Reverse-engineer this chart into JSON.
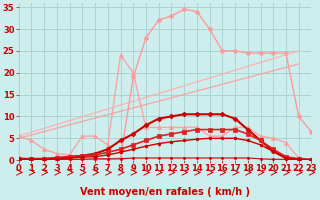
{
  "title": "",
  "xlabel": "Vent moyen/en rafales ( km/h )",
  "background_color": "#cdeeed",
  "grid_color": "#aad4d2",
  "xlim": [
    0,
    23
  ],
  "ylim": [
    0,
    36
  ],
  "yticks": [
    0,
    5,
    10,
    15,
    20,
    25,
    30,
    35
  ],
  "xticks": [
    0,
    1,
    2,
    3,
    4,
    5,
    6,
    7,
    8,
    9,
    10,
    11,
    12,
    13,
    14,
    15,
    16,
    17,
    18,
    19,
    20,
    21,
    22,
    23
  ],
  "series": [
    {
      "x": [
        0,
        1,
        2,
        3,
        4,
        5,
        6,
        7,
        8,
        9,
        10,
        11,
        12,
        13,
        14,
        15,
        16,
        17,
        18,
        19,
        20,
        21,
        22,
        23
      ],
      "y": [
        0.5,
        0.3,
        0.2,
        0.2,
        0.2,
        0.2,
        0.2,
        0.2,
        0.5,
        19,
        28,
        32,
        33,
        34.5,
        34,
        30,
        25,
        25,
        24.5,
        24.5,
        24.5,
        24.5,
        10,
        6.5
      ],
      "color": "#ff9999",
      "marker": "P",
      "markersize": 3,
      "linewidth": 1.0,
      "alpha": 1.0
    },
    {
      "x": [
        0,
        22
      ],
      "y": [
        5.5,
        25
      ],
      "color": "#ffaaaa",
      "marker": null,
      "linewidth": 1.0,
      "alpha": 0.8
    },
    {
      "x": [
        0,
        22
      ],
      "y": [
        5.0,
        22
      ],
      "color": "#ff9999",
      "marker": null,
      "linewidth": 1.0,
      "alpha": 0.8
    },
    {
      "x": [
        0,
        1,
        2,
        3,
        4,
        5,
        6,
        7,
        8,
        9,
        10,
        11,
        12,
        13,
        14,
        15,
        16,
        17,
        18,
        19,
        20,
        21,
        22,
        23
      ],
      "y": [
        5.5,
        4.5,
        2.5,
        1.5,
        1.2,
        5.5,
        5.5,
        3.5,
        24.0,
        20.0,
        7.5,
        7.5,
        7.5,
        7.5,
        7.5,
        5.5,
        5.5,
        7.5,
        7.5,
        5.5,
        5.0,
        4.0,
        0.5,
        0.2
      ],
      "color": "#ff9999",
      "marker": "^",
      "markersize": 3,
      "linewidth": 1.0,
      "alpha": 0.85
    },
    {
      "x": [
        0,
        1,
        2,
        3,
        4,
        5,
        6,
        7,
        8,
        9,
        10,
        11,
        12,
        13,
        14,
        15,
        16,
        17,
        18,
        19,
        20,
        21,
        22,
        23
      ],
      "y": [
        0.3,
        0.3,
        0.3,
        0.5,
        0.8,
        1.0,
        1.5,
        2.5,
        4.5,
        6.0,
        8.0,
        9.5,
        10.0,
        10.5,
        10.5,
        10.5,
        10.5,
        9.5,
        7.0,
        4.5,
        2.0,
        0.5,
        0.2,
        0.1
      ],
      "color": "#cc0000",
      "marker": "D",
      "markersize": 2.5,
      "linewidth": 1.5,
      "alpha": 1.0
    },
    {
      "x": [
        0,
        1,
        2,
        3,
        4,
        5,
        6,
        7,
        8,
        9,
        10,
        11,
        12,
        13,
        14,
        15,
        16,
        17,
        18,
        19,
        20,
        21,
        22,
        23
      ],
      "y": [
        0.3,
        0.3,
        0.3,
        0.5,
        0.8,
        1.0,
        1.2,
        1.8,
        2.5,
        3.5,
        4.5,
        5.5,
        6.0,
        6.5,
        7.0,
        7.0,
        7.0,
        7.0,
        6.0,
        4.5,
        2.5,
        0.8,
        0.3,
        0.1
      ],
      "color": "#dd2222",
      "marker": "s",
      "markersize": 2.5,
      "linewidth": 1.2,
      "alpha": 1.0
    },
    {
      "x": [
        0,
        1,
        2,
        3,
        4,
        5,
        6,
        7,
        8,
        9,
        10,
        11,
        12,
        13,
        14,
        15,
        16,
        17,
        18,
        19,
        20,
        21,
        22,
        23
      ],
      "y": [
        0.2,
        0.2,
        0.2,
        0.3,
        0.5,
        0.7,
        0.8,
        1.2,
        1.8,
        2.5,
        3.2,
        3.8,
        4.2,
        4.5,
        4.8,
        5.0,
        5.0,
        5.0,
        4.5,
        3.5,
        2.0,
        0.5,
        0.2,
        0.1
      ],
      "color": "#cc0000",
      "marker": "o",
      "markersize": 2,
      "linewidth": 1.0,
      "alpha": 1.0
    },
    {
      "x": [
        0,
        1,
        2,
        3,
        4,
        5,
        6,
        7,
        8,
        9,
        10,
        11,
        12,
        13,
        14,
        15,
        16,
        17,
        18,
        19,
        20,
        21,
        22,
        23
      ],
      "y": [
        0.2,
        0.2,
        0.2,
        0.2,
        0.2,
        0.2,
        0.3,
        0.3,
        0.3,
        0.5,
        0.5,
        0.5,
        0.5,
        0.5,
        0.5,
        0.5,
        0.5,
        0.5,
        0.5,
        0.3,
        0.2,
        0.2,
        0.1,
        0.1
      ],
      "color": "#cc0000",
      "marker": "o",
      "markersize": 1.5,
      "linewidth": 0.8,
      "alpha": 1.0
    }
  ],
  "arrow_color": "#cc0000",
  "tick_color": "#cc0000",
  "tick_labelsize": 6,
  "xlabel_fontsize": 7,
  "xlabel_color": "#cc0000"
}
